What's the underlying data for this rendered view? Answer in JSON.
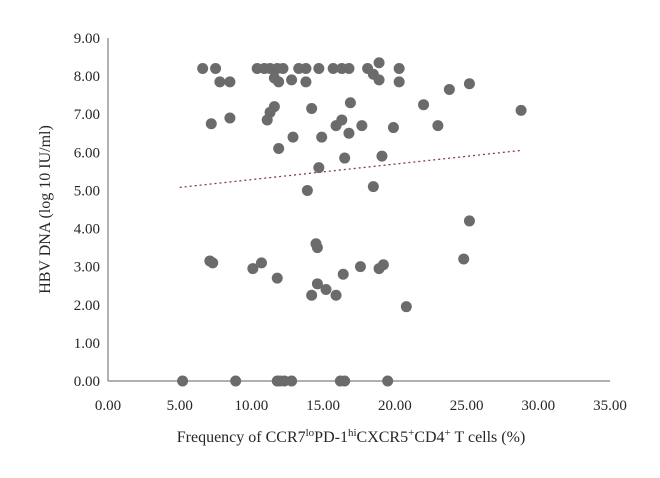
{
  "chart_data": {
    "type": "scatter",
    "title": "",
    "xlabel": {
      "parts": [
        {
          "text": "Frequency of CCR7",
          "sup": false
        },
        {
          "text": "lo",
          "sup": true
        },
        {
          "text": "PD-1",
          "sup": false
        },
        {
          "text": "hi",
          "sup": true
        },
        {
          "text": "CXCR5",
          "sup": false
        },
        {
          "text": "+",
          "sup": true
        },
        {
          "text": "CD4",
          "sup": false
        },
        {
          "text": "+",
          "sup": true
        },
        {
          "text": " T cells (%)",
          "sup": false
        }
      ]
    },
    "ylabel": "HBV DNA (log 10 IU/ml)",
    "xlim": [
      0,
      35
    ],
    "ylim": [
      0,
      9
    ],
    "x_ticks": [
      "0.00",
      "5.00",
      "10.00",
      "15.00",
      "20.00",
      "25.00",
      "30.00",
      "35.00"
    ],
    "y_ticks": [
      "0.00",
      "1.00",
      "2.00",
      "3.00",
      "4.00",
      "5.00",
      "6.00",
      "7.00",
      "8.00",
      "9.00"
    ],
    "grid": false,
    "legend": "none",
    "point_color": "#6b6b6b",
    "trendline_color": "#8b3a4a",
    "trendline": {
      "x": [
        5.0,
        28.8
      ],
      "y": [
        5.08,
        6.05
      ]
    },
    "points": [
      {
        "x": 6.6,
        "y": 8.2
      },
      {
        "x": 7.5,
        "y": 8.2
      },
      {
        "x": 10.4,
        "y": 8.2
      },
      {
        "x": 10.9,
        "y": 8.2
      },
      {
        "x": 11.3,
        "y": 8.2
      },
      {
        "x": 11.8,
        "y": 8.2
      },
      {
        "x": 12.2,
        "y": 8.2
      },
      {
        "x": 13.3,
        "y": 8.2
      },
      {
        "x": 13.8,
        "y": 8.2
      },
      {
        "x": 14.7,
        "y": 8.2
      },
      {
        "x": 15.7,
        "y": 8.2
      },
      {
        "x": 16.3,
        "y": 8.2
      },
      {
        "x": 16.8,
        "y": 8.2
      },
      {
        "x": 18.1,
        "y": 8.2
      },
      {
        "x": 20.3,
        "y": 8.2
      },
      {
        "x": 18.9,
        "y": 8.35
      },
      {
        "x": 7.8,
        "y": 7.85
      },
      {
        "x": 8.5,
        "y": 7.85
      },
      {
        "x": 11.6,
        "y": 7.95
      },
      {
        "x": 11.9,
        "y": 7.85
      },
      {
        "x": 12.8,
        "y": 7.9
      },
      {
        "x": 13.8,
        "y": 7.85
      },
      {
        "x": 18.5,
        "y": 8.05
      },
      {
        "x": 18.9,
        "y": 7.9
      },
      {
        "x": 20.3,
        "y": 7.85
      },
      {
        "x": 25.2,
        "y": 7.8
      },
      {
        "x": 23.8,
        "y": 7.65
      },
      {
        "x": 16.9,
        "y": 7.3
      },
      {
        "x": 22.0,
        "y": 7.25
      },
      {
        "x": 11.6,
        "y": 7.2
      },
      {
        "x": 14.2,
        "y": 7.15
      },
      {
        "x": 28.8,
        "y": 7.1
      },
      {
        "x": 11.3,
        "y": 7.05
      },
      {
        "x": 8.5,
        "y": 6.9
      },
      {
        "x": 11.1,
        "y": 6.85
      },
      {
        "x": 16.3,
        "y": 6.85
      },
      {
        "x": 7.2,
        "y": 6.75
      },
      {
        "x": 15.9,
        "y": 6.7
      },
      {
        "x": 17.7,
        "y": 6.7
      },
      {
        "x": 19.9,
        "y": 6.65
      },
      {
        "x": 23.0,
        "y": 6.7
      },
      {
        "x": 16.8,
        "y": 6.5
      },
      {
        "x": 12.9,
        "y": 6.4
      },
      {
        "x": 14.9,
        "y": 6.4
      },
      {
        "x": 11.9,
        "y": 6.1
      },
      {
        "x": 16.5,
        "y": 5.85
      },
      {
        "x": 19.1,
        "y": 5.9
      },
      {
        "x": 14.7,
        "y": 5.6
      },
      {
        "x": 18.5,
        "y": 5.1
      },
      {
        "x": 13.9,
        "y": 5.0
      },
      {
        "x": 25.2,
        "y": 4.2
      },
      {
        "x": 14.5,
        "y": 3.6
      },
      {
        "x": 14.6,
        "y": 3.5
      },
      {
        "x": 7.1,
        "y": 3.15
      },
      {
        "x": 7.3,
        "y": 3.1
      },
      {
        "x": 24.8,
        "y": 3.2
      },
      {
        "x": 10.1,
        "y": 2.95
      },
      {
        "x": 10.7,
        "y": 3.1
      },
      {
        "x": 17.6,
        "y": 3.0
      },
      {
        "x": 18.9,
        "y": 2.95
      },
      {
        "x": 19.2,
        "y": 3.05
      },
      {
        "x": 11.8,
        "y": 2.7
      },
      {
        "x": 16.4,
        "y": 2.8
      },
      {
        "x": 14.6,
        "y": 2.55
      },
      {
        "x": 15.2,
        "y": 2.4
      },
      {
        "x": 14.2,
        "y": 2.25
      },
      {
        "x": 15.9,
        "y": 2.25
      },
      {
        "x": 20.8,
        "y": 1.95
      },
      {
        "x": 5.2,
        "y": 0.0
      },
      {
        "x": 8.9,
        "y": 0.0
      },
      {
        "x": 11.8,
        "y": 0.0
      },
      {
        "x": 12.0,
        "y": 0.0
      },
      {
        "x": 12.3,
        "y": 0.0
      },
      {
        "x": 12.8,
        "y": 0.0
      },
      {
        "x": 16.2,
        "y": 0.0
      },
      {
        "x": 16.5,
        "y": 0.0
      },
      {
        "x": 19.5,
        "y": 0.0
      }
    ]
  }
}
